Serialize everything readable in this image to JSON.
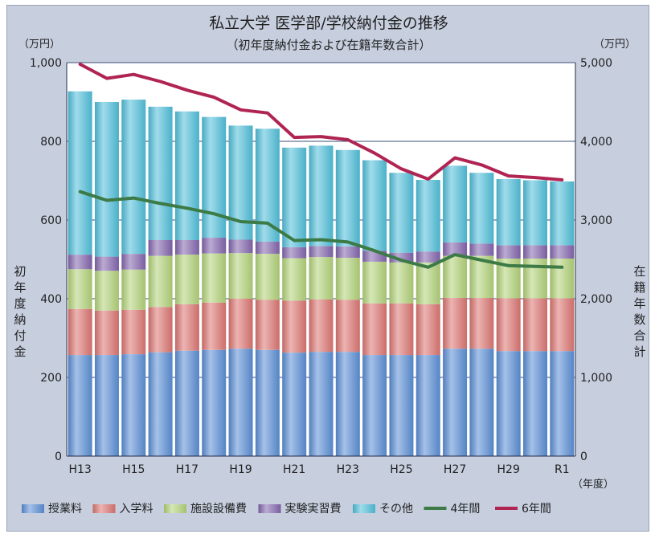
{
  "chart_data": {
    "type": "bar",
    "stacked": true,
    "title": "私立大学 医学部/学校納付金の推移",
    "subtitle": "（初年度納付金および在籍年数合計）",
    "left_unit": "（万円）",
    "right_unit": "（万円）",
    "x_unit": "（年度）",
    "ylabel_left": "初年度納付金",
    "ylabel_right": "在籍年数合計",
    "ylim_left": [
      0,
      1000
    ],
    "ylim_right": [
      0,
      5000
    ],
    "yticks_left": [
      "0",
      "200",
      "400",
      "600",
      "800",
      "1,000"
    ],
    "yticks_right": [
      "0",
      "1,000",
      "2,000",
      "3,000",
      "4,000",
      "5,000"
    ],
    "xtick_labels": [
      "H13",
      "",
      "H15",
      "",
      "H17",
      "",
      "H19",
      "",
      "H21",
      "",
      "H23",
      "",
      "H25",
      "",
      "H27",
      "",
      "H29",
      "",
      "R1"
    ],
    "categories": [
      "H13",
      "H14",
      "H15",
      "H16",
      "H17",
      "H18",
      "H19",
      "H20",
      "H21",
      "H22",
      "H23",
      "H24",
      "H25",
      "H26",
      "H27",
      "H28",
      "H29",
      "H30",
      "R1"
    ],
    "grid": "horizontal",
    "legend_position": "bottom",
    "series": [
      {
        "name": "授業料",
        "kind": "bar",
        "axis": "left",
        "color": "#5b8fd6",
        "values": [
          257,
          257,
          259,
          264,
          268,
          270,
          273,
          270,
          263,
          265,
          265,
          257,
          257,
          257,
          273,
          273,
          267,
          267,
          267
        ]
      },
      {
        "name": "入学料",
        "kind": "bar",
        "axis": "left",
        "color": "#dd7673",
        "values": [
          117,
          113,
          113,
          115,
          118,
          120,
          127,
          127,
          132,
          133,
          132,
          131,
          131,
          129,
          129,
          129,
          134,
          134,
          134
        ]
      },
      {
        "name": "施設設備費",
        "kind": "bar",
        "axis": "left",
        "color": "#b3d37a",
        "values": [
          101,
          101,
          102,
          130,
          126,
          125,
          116,
          117,
          108,
          108,
          107,
          106,
          104,
          106,
          107,
          107,
          101,
          101,
          101
        ]
      },
      {
        "name": "実験実習費",
        "kind": "bar",
        "axis": "left",
        "color": "#8466ae",
        "values": [
          37,
          36,
          40,
          40,
          37,
          40,
          34,
          31,
          28,
          28,
          29,
          28,
          25,
          28,
          34,
          31,
          34,
          34,
          34
        ]
      },
      {
        "name": "その他",
        "kind": "bar",
        "axis": "left",
        "color": "#52c0da",
        "values": [
          415,
          393,
          392,
          339,
          327,
          307,
          290,
          287,
          253,
          255,
          245,
          230,
          203,
          182,
          195,
          180,
          168,
          165,
          162
        ]
      },
      {
        "name": "4年間",
        "kind": "line",
        "axis": "right",
        "color": "#3c7a46",
        "values": [
          3360,
          3250,
          3280,
          3210,
          3150,
          3080,
          2980,
          2960,
          2740,
          2750,
          2720,
          2610,
          2490,
          2400,
          2560,
          2490,
          2420,
          2410,
          2400
        ]
      },
      {
        "name": "6年間",
        "kind": "line",
        "axis": "right",
        "color": "#b02452",
        "values": [
          4980,
          4800,
          4850,
          4760,
          4650,
          4560,
          4400,
          4360,
          4050,
          4060,
          4020,
          3850,
          3650,
          3520,
          3790,
          3700,
          3560,
          3540,
          3510
        ]
      }
    ]
  }
}
